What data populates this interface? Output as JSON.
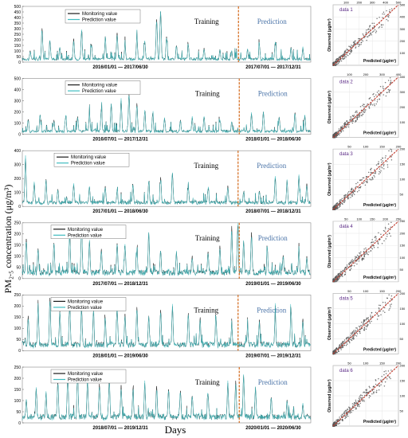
{
  "figure": {
    "ylabel": "PM₂.₅ concentration (μg/m³)",
    "xlabel": "Days"
  },
  "colors": {
    "monitoring": "#1a1a1a",
    "prediction": "#3fbcc0",
    "divider": "#d4691b",
    "scatter_point": "#555555",
    "fit_line": "#c0392b",
    "scatter_label": "#5b2a86",
    "prediction_text": "#4b74a8"
  },
  "legend": {
    "monitoring": "Monitoring value",
    "prediction": "Prediction value"
  },
  "region_labels": {
    "training": "Training",
    "prediction": "Prediction"
  },
  "scatter_axes": {
    "xlabel": "Predicted (μg/m³)",
    "ylabel": "Observed (μg/m³)"
  },
  "chart_data": [
    {
      "type": "line",
      "panel": 1,
      "series": [
        {
          "name": "Monitoring value"
        },
        {
          "name": "Prediction value"
        }
      ],
      "ylim": [
        0,
        500
      ],
      "yticks": [
        0,
        50,
        100,
        150,
        200,
        250,
        300,
        350,
        400,
        450,
        500
      ],
      "training_period": "2016/01/01 — 2017/06/30",
      "prediction_period": "2017/07/01 — 2017/12/31",
      "days_total": 730,
      "train_days": 547,
      "peaks": [
        [
          20,
          100
        ],
        [
          50,
          300
        ],
        [
          70,
          180
        ],
        [
          95,
          130
        ],
        [
          130,
          200
        ],
        [
          150,
          270
        ],
        [
          175,
          150
        ],
        [
          210,
          180
        ],
        [
          240,
          260
        ],
        [
          260,
          150
        ],
        [
          290,
          220
        ],
        [
          310,
          180
        ],
        [
          340,
          380
        ],
        [
          350,
          450
        ],
        [
          365,
          220
        ],
        [
          390,
          140
        ],
        [
          420,
          150
        ],
        [
          460,
          120
        ],
        [
          500,
          110
        ],
        [
          530,
          90
        ],
        [
          570,
          110
        ],
        [
          600,
          150
        ],
        [
          640,
          170
        ],
        [
          680,
          130
        ],
        [
          710,
          120
        ]
      ],
      "scatter": {
        "label": "data 1",
        "xlim": [
          0,
          500
        ],
        "ylim": [
          0,
          500
        ],
        "xticks": [
          0,
          100,
          200,
          300,
          400,
          500
        ],
        "yticks": [
          0,
          100,
          200,
          300,
          400,
          500
        ]
      }
    },
    {
      "type": "line",
      "panel": 2,
      "series": [
        {
          "name": "Monitoring value"
        },
        {
          "name": "Prediction value"
        }
      ],
      "ylim": [
        0,
        500
      ],
      "yticks": [
        0,
        100,
        200,
        300,
        400,
        500
      ],
      "training_period": "2016/07/01 — 2017/12/31",
      "prediction_period": "2018/01/01 — 2018/06/30",
      "days_total": 730,
      "train_days": 549,
      "peaks": [
        [
          15,
          130
        ],
        [
          45,
          170
        ],
        [
          80,
          120
        ],
        [
          110,
          160
        ],
        [
          140,
          150
        ],
        [
          170,
          180
        ],
        [
          200,
          230
        ],
        [
          225,
          270
        ],
        [
          250,
          300
        ],
        [
          270,
          360
        ],
        [
          290,
          270
        ],
        [
          310,
          200
        ],
        [
          330,
          180
        ],
        [
          360,
          140
        ],
        [
          400,
          120
        ],
        [
          430,
          140
        ],
        [
          460,
          150
        ],
        [
          500,
          120
        ],
        [
          530,
          110
        ],
        [
          580,
          180
        ],
        [
          610,
          200
        ],
        [
          650,
          150
        ],
        [
          690,
          190
        ],
        [
          715,
          160
        ]
      ],
      "scatter": {
        "label": "data 2",
        "xlim": [
          0,
          400
        ],
        "ylim": [
          0,
          400
        ],
        "xticks": [
          0,
          100,
          200,
          300,
          400
        ],
        "yticks": [
          0,
          100,
          200,
          300,
          400
        ]
      }
    },
    {
      "type": "line",
      "panel": 3,
      "series": [
        {
          "name": "Monitoring value"
        },
        {
          "name": "Prediction value"
        }
      ],
      "ylim": [
        0,
        400
      ],
      "yticks": [
        0,
        100,
        200,
        300,
        400
      ],
      "training_period": "2017/01/01 — 2018/06/30",
      "prediction_period": "2018/07/01 — 2018/12/31",
      "days_total": 730,
      "train_days": 546,
      "peaks": [
        [
          8,
          340
        ],
        [
          30,
          160
        ],
        [
          60,
          190
        ],
        [
          90,
          120
        ],
        [
          130,
          150
        ],
        [
          170,
          130
        ],
        [
          210,
          140
        ],
        [
          240,
          110
        ],
        [
          280,
          150
        ],
        [
          320,
          170
        ],
        [
          350,
          200
        ],
        [
          380,
          230
        ],
        [
          420,
          130
        ],
        [
          470,
          120
        ],
        [
          520,
          140
        ],
        [
          560,
          100
        ],
        [
          600,
          110
        ],
        [
          640,
          200
        ],
        [
          670,
          180
        ],
        [
          700,
          210
        ],
        [
          720,
          160
        ]
      ],
      "scatter": {
        "label": "data 3",
        "xlim": [
          0,
          200
        ],
        "ylim": [
          0,
          200
        ],
        "xticks": [
          0,
          50,
          100,
          150,
          200
        ],
        "yticks": [
          0,
          50,
          100,
          150,
          200
        ]
      }
    },
    {
      "type": "line",
      "panel": 4,
      "series": [
        {
          "name": "Monitoring value"
        },
        {
          "name": "Prediction value"
        }
      ],
      "ylim": [
        0,
        250
      ],
      "yticks": [
        0,
        50,
        100,
        150,
        200,
        250
      ],
      "training_period": "2017/07/01 — 2018/12/31",
      "prediction_period": "2019/01/01 — 2019/06/30",
      "days_total": 730,
      "train_days": 549,
      "peaks": [
        [
          10,
          170
        ],
        [
          40,
          130
        ],
        [
          80,
          150
        ],
        [
          120,
          200
        ],
        [
          150,
          230
        ],
        [
          170,
          160
        ],
        [
          200,
          130
        ],
        [
          240,
          150
        ],
        [
          260,
          140
        ],
        [
          290,
          120
        ],
        [
          320,
          200
        ],
        [
          350,
          120
        ],
        [
          390,
          110
        ],
        [
          430,
          100
        ],
        [
          470,
          120
        ],
        [
          500,
          140
        ],
        [
          530,
          220
        ],
        [
          545,
          225
        ],
        [
          560,
          160
        ],
        [
          580,
          200
        ],
        [
          620,
          130
        ],
        [
          660,
          100
        ],
        [
          700,
          120
        ],
        [
          720,
          90
        ]
      ],
      "scatter": {
        "label": "data 4",
        "xlim": [
          0,
          250
        ],
        "ylim": [
          0,
          250
        ],
        "xticks": [
          0,
          50,
          100,
          150,
          200,
          250
        ],
        "yticks": [
          0,
          50,
          100,
          150,
          200,
          250
        ]
      }
    },
    {
      "type": "line",
      "panel": 5,
      "series": [
        {
          "name": "Monitoring value"
        },
        {
          "name": "Prediction value"
        }
      ],
      "ylim": [
        0,
        250
      ],
      "yticks": [
        0,
        50,
        100,
        150,
        200,
        250
      ],
      "training_period": "2018/01/01 — 2019/06/30",
      "prediction_period": "2019/07/01 — 2019/12/31",
      "days_total": 730,
      "train_days": 546,
      "peaks": [
        [
          15,
          150
        ],
        [
          40,
          190
        ],
        [
          70,
          230
        ],
        [
          95,
          170
        ],
        [
          120,
          200
        ],
        [
          150,
          180
        ],
        [
          180,
          170
        ],
        [
          210,
          140
        ],
        [
          240,
          180
        ],
        [
          260,
          160
        ],
        [
          290,
          190
        ],
        [
          320,
          150
        ],
        [
          350,
          180
        ],
        [
          380,
          190
        ],
        [
          420,
          160
        ],
        [
          450,
          140
        ],
        [
          490,
          150
        ],
        [
          530,
          110
        ],
        [
          570,
          100
        ],
        [
          600,
          130
        ],
        [
          640,
          160
        ],
        [
          680,
          180
        ],
        [
          710,
          140
        ]
      ],
      "scatter": {
        "label": "data 5",
        "xlim": [
          0,
          200
        ],
        "ylim": [
          0,
          200
        ],
        "xticks": [
          0,
          50,
          100,
          150,
          200
        ],
        "yticks": [
          0,
          50,
          100,
          150,
          200
        ]
      }
    },
    {
      "type": "line",
      "panel": 6,
      "series": [
        {
          "name": "Monitoring value"
        },
        {
          "name": "Prediction value"
        }
      ],
      "ylim": [
        0,
        250
      ],
      "yticks": [
        0,
        50,
        100,
        150,
        200,
        250
      ],
      "training_period": "2018/07/01 — 2019/12/31",
      "prediction_period": "2020/01/01 — 2020/06/30",
      "days_total": 730,
      "train_days": 549,
      "peaks": [
        [
          10,
          100
        ],
        [
          35,
          150
        ],
        [
          60,
          130
        ],
        [
          90,
          180
        ],
        [
          115,
          200
        ],
        [
          140,
          210
        ],
        [
          165,
          180
        ],
        [
          195,
          170
        ],
        [
          220,
          190
        ],
        [
          250,
          160
        ],
        [
          280,
          150
        ],
        [
          310,
          170
        ],
        [
          340,
          160
        ],
        [
          370,
          150
        ],
        [
          400,
          140
        ],
        [
          430,
          120
        ],
        [
          470,
          130
        ],
        [
          520,
          170
        ],
        [
          540,
          180
        ],
        [
          560,
          210
        ],
        [
          590,
          150
        ],
        [
          630,
          110
        ],
        [
          670,
          100
        ],
        [
          710,
          80
        ]
      ],
      "scatter": {
        "label": "data 6",
        "xlim": [
          0,
          200
        ],
        "ylim": [
          0,
          200
        ],
        "xticks": [
          0,
          50,
          100,
          150,
          200
        ],
        "yticks": [
          0,
          50,
          100,
          150,
          200
        ]
      }
    }
  ]
}
